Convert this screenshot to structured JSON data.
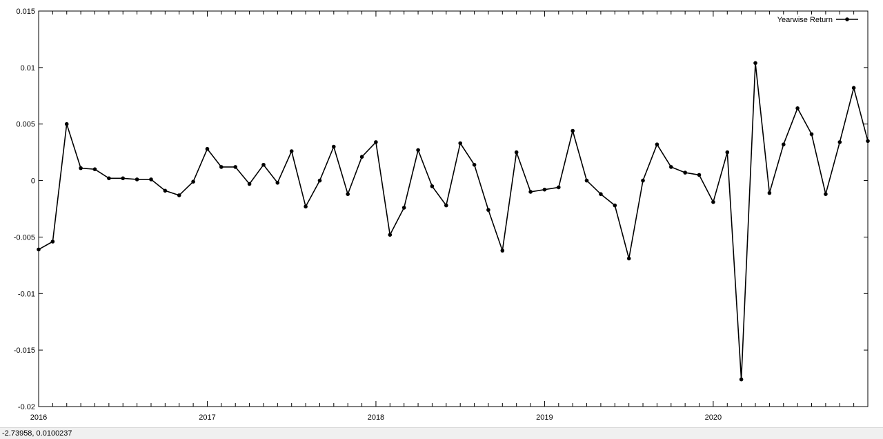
{
  "status_bar": {
    "coordinate_readout": "-2.73958,  0.0100237"
  },
  "chart_data": {
    "type": "line",
    "title": "",
    "xlabel": "",
    "ylabel": "",
    "x_tick_labels": [
      "2016",
      "2017",
      "2018",
      "2019",
      "2020"
    ],
    "y_tick_labels": [
      "0.015",
      "0.01",
      "0.005",
      "0",
      "-0.005",
      "-0.01",
      "-0.015",
      "-0.02"
    ],
    "y_ticks": [
      0.015,
      0.01,
      0.005,
      0,
      -0.005,
      -0.01,
      -0.015,
      -0.02
    ],
    "ylim": [
      -0.02,
      0.015
    ],
    "xlim": [
      "2016-01",
      "2020-12"
    ],
    "grid": false,
    "legend_position": "top-right",
    "colors": {
      "series": "#000000",
      "axes": "#000000",
      "background": "#ffffff"
    },
    "series": [
      {
        "name": "Yearwise Return",
        "x": [
          "2016-01",
          "2016-02",
          "2016-03",
          "2016-04",
          "2016-05",
          "2016-06",
          "2016-07",
          "2016-08",
          "2016-09",
          "2016-10",
          "2016-11",
          "2016-12",
          "2017-01",
          "2017-02",
          "2017-03",
          "2017-04",
          "2017-05",
          "2017-06",
          "2017-07",
          "2017-08",
          "2017-09",
          "2017-10",
          "2017-11",
          "2017-12",
          "2018-01",
          "2018-02",
          "2018-03",
          "2018-04",
          "2018-05",
          "2018-06",
          "2018-07",
          "2018-08",
          "2018-09",
          "2018-10",
          "2018-11",
          "2018-12",
          "2019-01",
          "2019-02",
          "2019-03",
          "2019-04",
          "2019-05",
          "2019-06",
          "2019-07",
          "2019-08",
          "2019-09",
          "2019-10",
          "2019-11",
          "2019-12",
          "2020-01",
          "2020-02",
          "2020-03",
          "2020-04",
          "2020-05",
          "2020-06",
          "2020-07",
          "2020-08",
          "2020-09",
          "2020-10",
          "2020-11",
          "2020-12"
        ],
        "values": [
          -0.0061,
          -0.0054,
          0.005,
          0.0011,
          0.001,
          0.0002,
          0.0002,
          0.0001,
          0.0001,
          -0.0009,
          -0.0013,
          -0.0001,
          0.0028,
          0.0012,
          0.0012,
          -0.0003,
          0.0014,
          -0.0002,
          0.0026,
          -0.0023,
          0.0,
          0.003,
          -0.0012,
          0.0021,
          0.0034,
          -0.0048,
          -0.0024,
          0.0027,
          -0.0005,
          -0.0022,
          0.0033,
          0.0014,
          -0.0026,
          -0.0062,
          0.0025,
          -0.001,
          -0.0008,
          -0.0006,
          0.0044,
          0.0,
          -0.0012,
          -0.0022,
          -0.0069,
          0.0,
          0.0032,
          0.0012,
          0.0007,
          0.0005,
          -0.0019,
          0.0025,
          -0.0176,
          0.0104,
          -0.0011,
          0.0032,
          0.0064,
          0.0041,
          -0.0012,
          0.0034,
          0.0082,
          0.0035
        ]
      }
    ]
  }
}
